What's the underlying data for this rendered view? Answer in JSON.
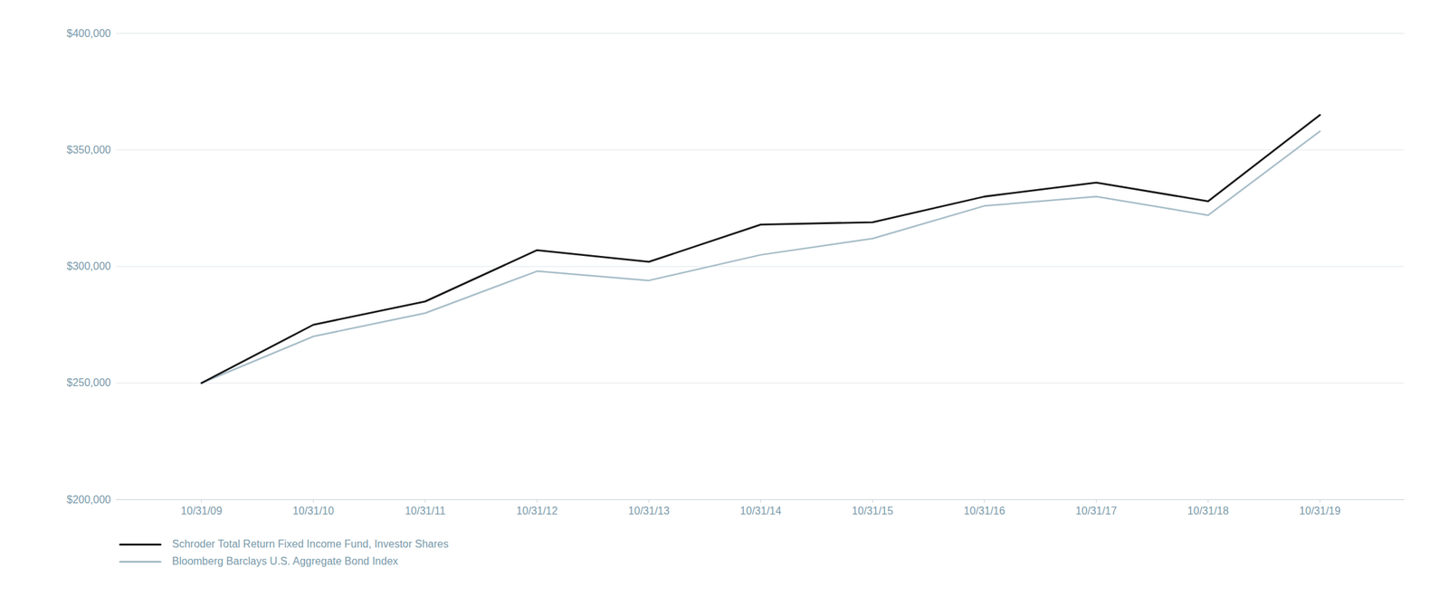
{
  "chart_data": {
    "type": "line",
    "categories": [
      "10/31/09",
      "10/31/10",
      "10/31/11",
      "10/31/12",
      "10/31/13",
      "10/31/14",
      "10/31/15",
      "10/31/16",
      "10/31/17",
      "10/31/18",
      "10/31/19"
    ],
    "series": [
      {
        "name": "Schroder Total Return Fixed Income Fund, Investor Shares",
        "color": "#1a1a1a",
        "values": [
          250000,
          275000,
          285000,
          307000,
          302000,
          318000,
          319000,
          330000,
          336000,
          328000,
          365000
        ]
      },
      {
        "name": "Bloomberg Barclays U.S. Aggregate Bond Index",
        "color": "#a8bec8",
        "values": [
          250000,
          270000,
          280000,
          298000,
          294000,
          305000,
          312000,
          326000,
          330000,
          322000,
          358000
        ]
      }
    ],
    "ylim": [
      200000,
      400000
    ],
    "yticks": [
      {
        "value": 200000,
        "label": "$200,000"
      },
      {
        "value": 250000,
        "label": "$250,000"
      },
      {
        "value": 300000,
        "label": "$300,000"
      },
      {
        "value": 350000,
        "label": "$350,000"
      },
      {
        "value": 400000,
        "label": "$400,000"
      }
    ],
    "grid": true
  }
}
